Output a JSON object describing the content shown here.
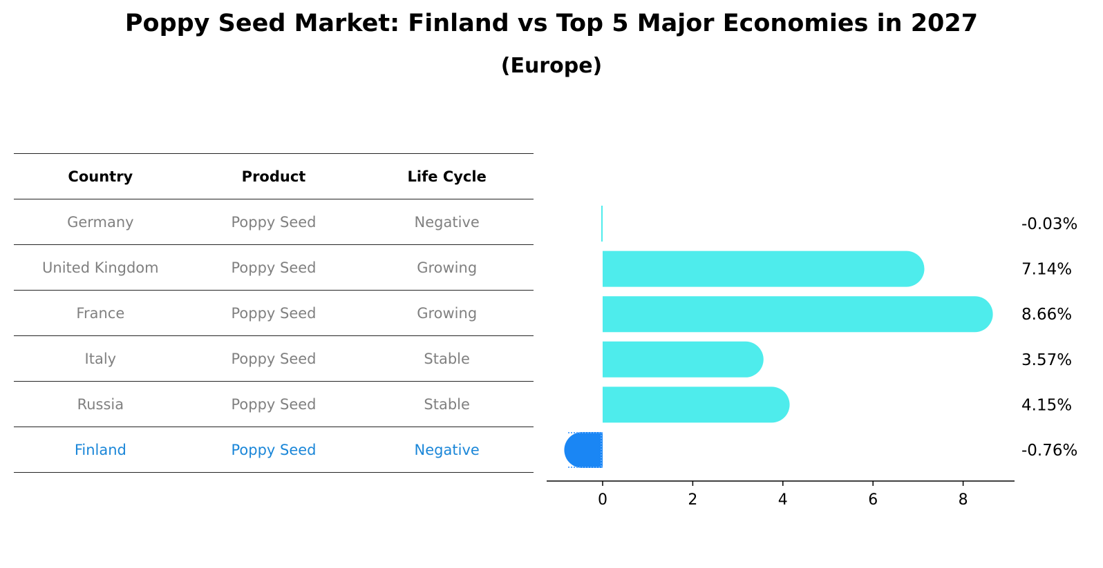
{
  "title": "Poppy Seed Market: Finland vs Top 5 Major Economies in 2027",
  "subtitle": "(Europe)",
  "table": {
    "headers": [
      "Country",
      "Product",
      "Life Cycle"
    ],
    "rows": [
      {
        "country": "Germany",
        "product": "Poppy Seed",
        "life_cycle": "Negative"
      },
      {
        "country": "United Kingdom",
        "product": "Poppy Seed",
        "life_cycle": "Growing"
      },
      {
        "country": "France",
        "product": "Poppy Seed",
        "life_cycle": "Growing"
      },
      {
        "country": "Italy",
        "product": "Poppy Seed",
        "life_cycle": "Stable"
      },
      {
        "country": "Russia",
        "product": "Poppy Seed",
        "life_cycle": "Stable"
      },
      {
        "country": "Finland",
        "product": "Poppy Seed",
        "life_cycle": "Negative"
      }
    ]
  },
  "colors": {
    "bar": "#4eecec",
    "highlight_bar": "#1a86f4",
    "table_text": "#808080",
    "highlight_text": "#1a86d8"
  },
  "chart_data": {
    "type": "bar",
    "orientation": "horizontal",
    "categories": [
      "Germany",
      "United Kingdom",
      "France",
      "Italy",
      "Russia",
      "Finland"
    ],
    "values": [
      -0.03,
      7.14,
      8.66,
      3.57,
      4.15,
      -0.76
    ],
    "value_labels": [
      "-0.03%",
      "7.14%",
      "8.66%",
      "3.57%",
      "4.15%",
      "-0.76%"
    ],
    "highlight": "Finland",
    "xticks": [
      "0",
      "2",
      "4",
      "6",
      "8"
    ],
    "xlim": [
      -1.25,
      9.1
    ],
    "grid": false,
    "legend": "none"
  }
}
